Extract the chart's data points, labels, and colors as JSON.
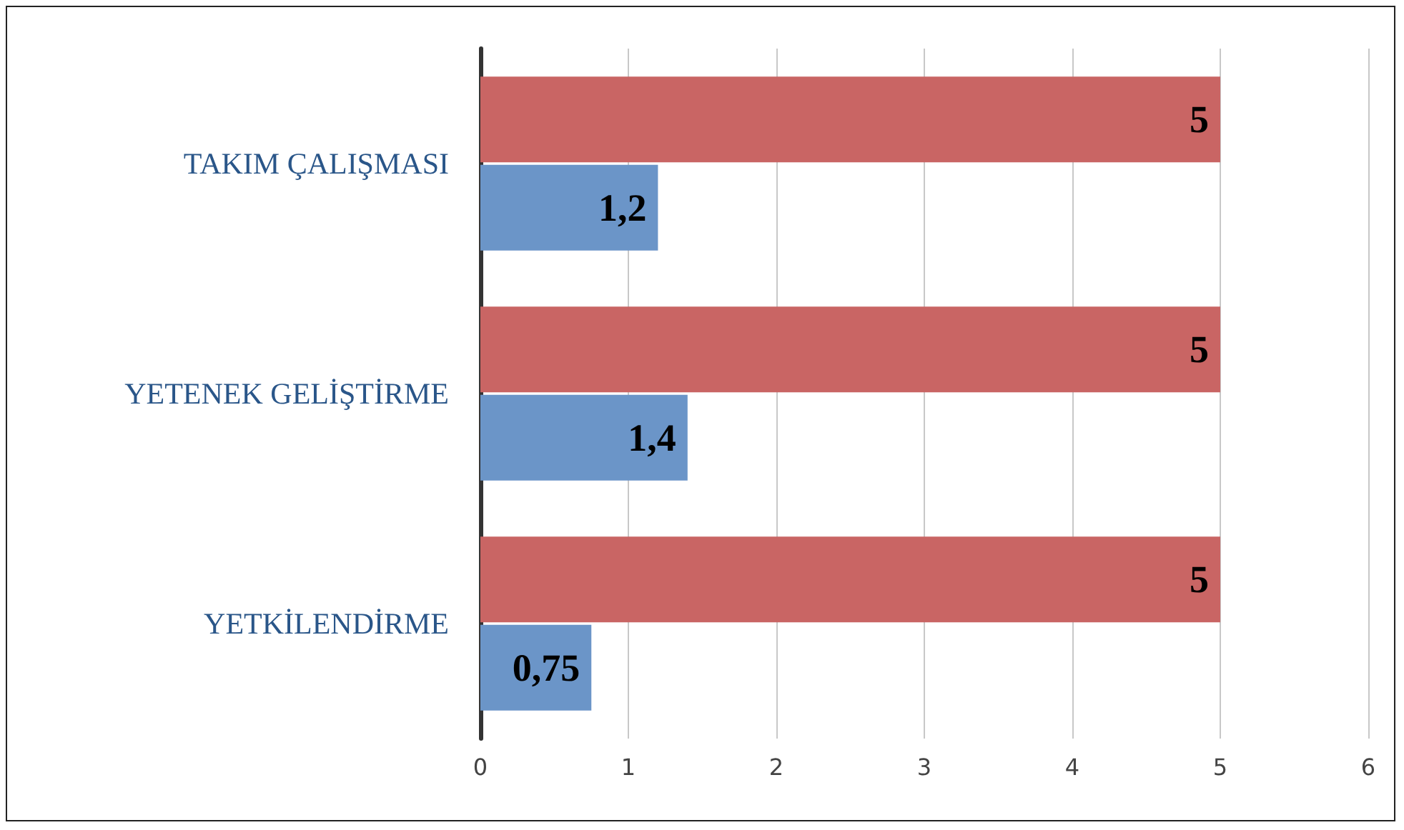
{
  "chart_data": {
    "type": "bar",
    "orientation": "horizontal",
    "categories": [
      "TAKIM ÇALIŞMASI",
      "YETENEK GELİŞTİRME",
      "YETKİLENDİRME"
    ],
    "series": [
      {
        "color": "#c96564",
        "values": [
          5,
          5,
          5
        ],
        "value_labels": [
          "5",
          "5",
          "5"
        ]
      },
      {
        "color": "#6b95c8",
        "values": [
          1.2,
          1.4,
          0.75
        ],
        "value_labels": [
          "1,2",
          "1,4",
          "0,75"
        ]
      }
    ],
    "xlim": [
      0,
      6
    ],
    "xticks": [
      0,
      1,
      2,
      3,
      4,
      5,
      6
    ],
    "grid": "x"
  }
}
